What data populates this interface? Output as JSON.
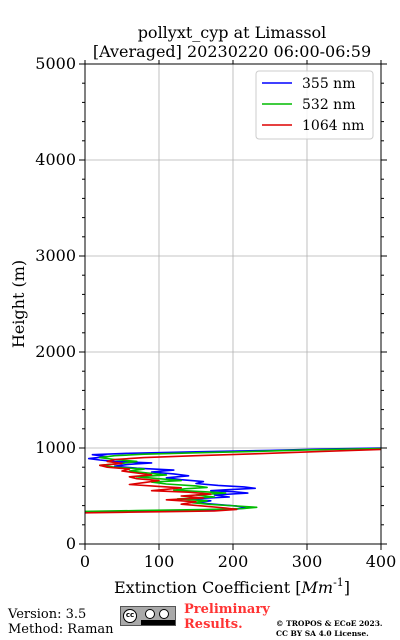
{
  "chart_data": {
    "type": "line",
    "title": "pollyxt_cyp at Limassol",
    "subtitle": "[Averaged] 20230220 06:00-06:59",
    "xlabel_main": "Extinction Coefficient ",
    "xlabel_unit_base": "Mm",
    "xlabel_unit_exp": "-1",
    "xlabel_close": "]",
    "xlabel_open": "[",
    "ylabel": "Height (m)",
    "xlim": [
      0,
      400
    ],
    "ylim": [
      0,
      5000
    ],
    "xticks": [
      0,
      100,
      200,
      300,
      400
    ],
    "yticks": [
      0,
      1000,
      2000,
      3000,
      4000,
      5000
    ],
    "grid": true,
    "legend_position": "top-right",
    "series": [
      {
        "name": "355 nm",
        "color": "#0000ff",
        "points": [
          [
            0,
            330
          ],
          [
            60,
            340
          ],
          [
            140,
            350
          ],
          [
            200,
            360
          ],
          [
            218,
            375
          ],
          [
            205,
            395
          ],
          [
            180,
            410
          ],
          [
            150,
            430
          ],
          [
            170,
            450
          ],
          [
            140,
            470
          ],
          [
            195,
            490
          ],
          [
            175,
            510
          ],
          [
            220,
            530
          ],
          [
            200,
            545
          ],
          [
            170,
            555
          ],
          [
            190,
            565
          ],
          [
            230,
            580
          ],
          [
            215,
            595
          ],
          [
            180,
            610
          ],
          [
            150,
            630
          ],
          [
            160,
            650
          ],
          [
            130,
            670
          ],
          [
            110,
            690
          ],
          [
            140,
            710
          ],
          [
            120,
            730
          ],
          [
            90,
            750
          ],
          [
            120,
            770
          ],
          [
            70,
            790
          ],
          [
            40,
            810
          ],
          [
            60,
            830
          ],
          [
            90,
            845
          ],
          [
            40,
            860
          ],
          [
            20,
            875
          ],
          [
            5,
            890
          ],
          [
            30,
            910
          ],
          [
            10,
            930
          ],
          [
            60,
            945
          ],
          [
            150,
            960
          ],
          [
            250,
            975
          ],
          [
            320,
            990
          ],
          [
            400,
            1000
          ]
        ]
      },
      {
        "name": "532 nm",
        "color": "#00bb00",
        "points": [
          [
            0,
            340
          ],
          [
            70,
            348
          ],
          [
            160,
            358
          ],
          [
            215,
            370
          ],
          [
            232,
            382
          ],
          [
            205,
            396
          ],
          [
            170,
            412
          ],
          [
            145,
            430
          ],
          [
            165,
            450
          ],
          [
            125,
            470
          ],
          [
            175,
            490
          ],
          [
            150,
            510
          ],
          [
            190,
            530
          ],
          [
            160,
            545
          ],
          [
            120,
            560
          ],
          [
            135,
            575
          ],
          [
            165,
            590
          ],
          [
            150,
            605
          ],
          [
            110,
            625
          ],
          [
            90,
            645
          ],
          [
            130,
            660
          ],
          [
            100,
            680
          ],
          [
            70,
            700
          ],
          [
            110,
            720
          ],
          [
            85,
            740
          ],
          [
            60,
            760
          ],
          [
            80,
            780
          ],
          [
            40,
            800
          ],
          [
            20,
            820
          ],
          [
            50,
            840
          ],
          [
            70,
            860
          ],
          [
            40,
            880
          ],
          [
            20,
            900
          ],
          [
            40,
            920
          ],
          [
            80,
            935
          ],
          [
            150,
            950
          ],
          [
            230,
            965
          ],
          [
            300,
            980
          ],
          [
            400,
            995
          ]
        ]
      },
      {
        "name": "1064 nm",
        "color": "#dd0000",
        "points": [
          [
            0,
            325
          ],
          [
            50,
            330
          ],
          [
            120,
            338
          ],
          [
            175,
            345
          ],
          [
            205,
            360
          ],
          [
            190,
            375
          ],
          [
            160,
            395
          ],
          [
            130,
            415
          ],
          [
            150,
            440
          ],
          [
            110,
            460
          ],
          [
            160,
            480
          ],
          [
            130,
            500
          ],
          [
            170,
            520
          ],
          [
            140,
            540
          ],
          [
            90,
            555
          ],
          [
            110,
            570
          ],
          [
            130,
            585
          ],
          [
            100,
            600
          ],
          [
            60,
            620
          ],
          [
            80,
            640
          ],
          [
            100,
            660
          ],
          [
            70,
            680
          ],
          [
            60,
            700
          ],
          [
            90,
            720
          ],
          [
            70,
            740
          ],
          [
            50,
            760
          ],
          [
            60,
            780
          ],
          [
            30,
            800
          ],
          [
            20,
            820
          ],
          [
            50,
            840
          ],
          [
            30,
            860
          ],
          [
            40,
            880
          ],
          [
            80,
            900
          ],
          [
            150,
            920
          ],
          [
            230,
            940
          ],
          [
            320,
            965
          ],
          [
            400,
            985
          ]
        ]
      }
    ]
  },
  "footer": {
    "version": "Version: 3.5",
    "method": "Method: Raman",
    "cc_label": "cc",
    "prelim_line1": "Preliminary",
    "prelim_line2": "Results.",
    "copyright_line1": "© TROPOS & ECoE 2023.",
    "copyright_line2": "CC BY SA 4.0 License."
  }
}
